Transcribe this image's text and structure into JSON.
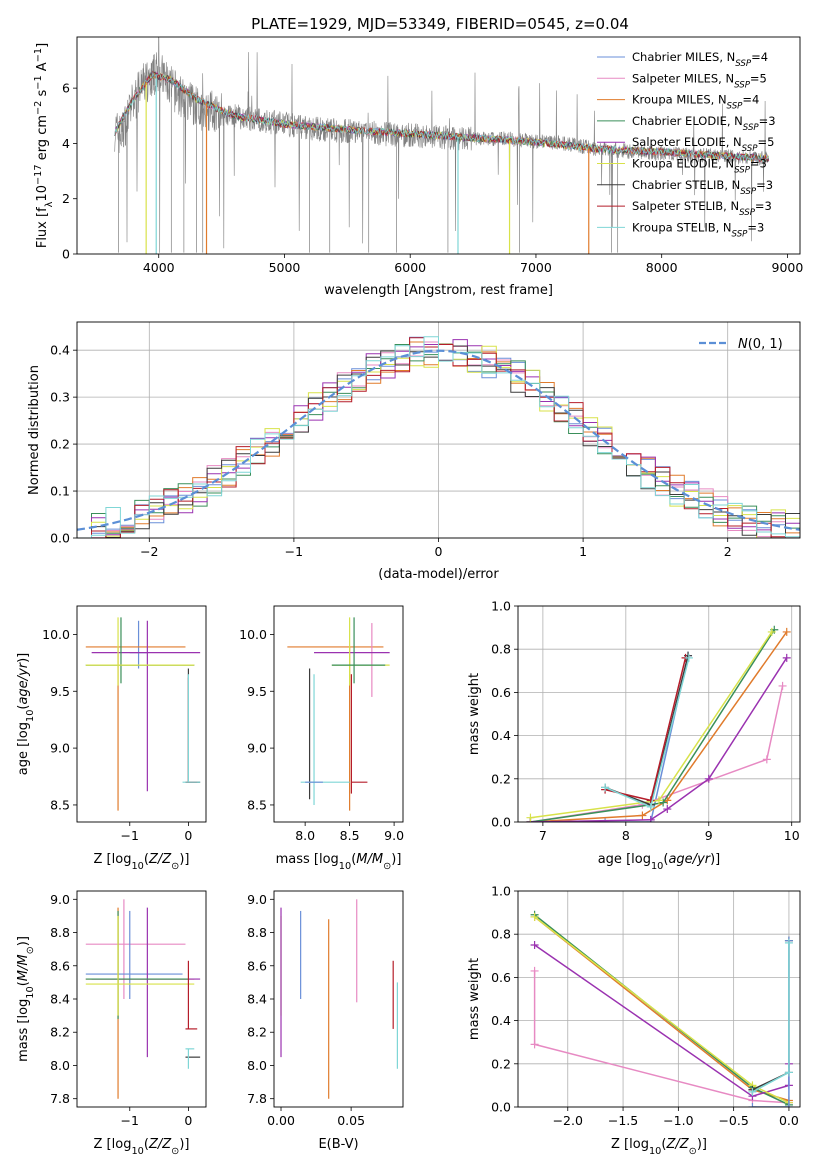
{
  "figure_title": "PLATE=1929, MJD=53349, FIBERID=0545, z=0.04",
  "colors": {
    "Chabrier MILES": "#6a8fd8",
    "Salpeter MILES": "#e78ac3",
    "Kroupa MILES": "#e07b2c",
    "Chabrier ELODIE": "#3a8f5a",
    "Salpeter ELODIE": "#9a32b0",
    "Kroupa ELODIE": "#d8e24a",
    "Chabrier STELIB": "#3c3c3c",
    "Salpeter STELIB": "#b51d2a",
    "Kroupa STELIB": "#7fd6d6"
  },
  "chart_data": [
    {
      "id": "spectrum",
      "type": "line",
      "xlabel": "wavelength [Angstrom, rest frame]",
      "ylabel": "Flux [f_λ 10^-17 erg cm^-2 s^-1 A^-1]",
      "xlim": [
        3350,
        9100
      ],
      "ylim": [
        0,
        7.85
      ],
      "xticks": [
        4000,
        5000,
        6000,
        7000,
        8000,
        9000
      ],
      "yticks": [
        0,
        2,
        4,
        6
      ],
      "grid": false,
      "legend_position": "top-right",
      "data_series": {
        "name": "data",
        "color": "#808080",
        "x": [
          3650,
          3700,
          3800,
          3900,
          4000,
          4100,
          4200,
          4300,
          4500,
          4700,
          5000,
          5300,
          5600,
          6000,
          6400,
          6800,
          7200,
          7500,
          7800,
          8100,
          8400,
          8700,
          8850
        ],
        "y": [
          4.5,
          4.3,
          5.5,
          6.3,
          6.6,
          6.0,
          5.6,
          5.3,
          5.1,
          4.9,
          4.7,
          4.5,
          4.4,
          4.3,
          4.2,
          4.15,
          4.0,
          3.8,
          3.7,
          3.6,
          3.55,
          3.5,
          3.45
        ]
      },
      "series": [
        {
          "name": "Chabrier MILES",
          "legend": "Chabrier MILES, N_SSP=4",
          "color": "#6a8fd8"
        },
        {
          "name": "Salpeter MILES",
          "legend": "Salpeter MILES, N_SSP=5",
          "color": "#e78ac3"
        },
        {
          "name": "Kroupa MILES",
          "legend": "Kroupa MILES, N_SSP=4",
          "color": "#e07b2c"
        },
        {
          "name": "Chabrier ELODIE",
          "legend": "Chabrier ELODIE, N_SSP=3",
          "color": "#3a8f5a"
        },
        {
          "name": "Salpeter ELODIE",
          "legend": "Salpeter ELODIE, N_SSP=5",
          "color": "#9a32b0"
        },
        {
          "name": "Kroupa ELODIE",
          "legend": "Kroupa ELODIE, N_SSP=3",
          "color": "#d8e24a"
        },
        {
          "name": "Chabrier STELIB",
          "legend": "Chabrier STELIB, N_SSP=3",
          "color": "#3c3c3c"
        },
        {
          "name": "Salpeter STELIB",
          "legend": "Salpeter STELIB, N_SSP=3",
          "color": "#b51d2a"
        },
        {
          "name": "Kroupa STELIB",
          "legend": "Kroupa STELIB, N_SSP=3",
          "color": "#7fd6d6"
        }
      ],
      "model_curve": {
        "x": [
          3650,
          3800,
          3950,
          4100,
          4300,
          4600,
          5000,
          5500,
          6000,
          6500,
          7000,
          7500,
          8000,
          8500,
          8850
        ],
        "y": [
          4.4,
          5.6,
          6.5,
          6.3,
          5.6,
          5.0,
          4.7,
          4.5,
          4.35,
          4.2,
          4.05,
          3.8,
          3.7,
          3.55,
          3.45
        ]
      }
    },
    {
      "id": "residuals",
      "type": "line",
      "xlabel": "(data-model)/error",
      "ylabel": "Normed distribution",
      "xlim": [
        -2.5,
        2.5
      ],
      "ylim": [
        0,
        0.46
      ],
      "xticks": [
        -2,
        -1,
        0,
        1,
        2
      ],
      "yticks": [
        0.0,
        0.1,
        0.2,
        0.3,
        0.4
      ],
      "grid": true,
      "legend_position": "top-right",
      "gaussian_label": "N(0,1)",
      "gaussian_color": "#5b8fd6",
      "bin_width": 0.1
    },
    {
      "id": "age_vs_Z",
      "type": "scatter",
      "xlabel": "Z [log10(Z/Z☉)]",
      "ylabel": "age [log10(age/yr)]",
      "xlim": [
        -1.9,
        0.3
      ],
      "ylim": [
        8.35,
        10.25
      ],
      "xticks": [
        -1,
        0
      ],
      "yticks": [
        8.5,
        9.0,
        9.5,
        10.0
      ],
      "grid": false,
      "points": [
        {
          "s": "Chabrier MILES",
          "x": -0.85,
          "y": 9.84,
          "xe": [
            -1.0,
            -0.7
          ],
          "ye": [
            9.7,
            10.12
          ]
        },
        {
          "s": "Kroupa MILES",
          "x": -1.2,
          "y": 9.89,
          "xe": [
            -1.75,
            -0.05
          ],
          "ye": [
            8.45,
            9.89
          ]
        },
        {
          "s": "Salpeter ELODIE",
          "x": -0.9,
          "y": 9.84,
          "xe": [
            -1.65,
            0.2
          ],
          "ye": [
            9.84,
            9.84
          ]
        },
        {
          "s": "Salpeter ELODIE",
          "x": -0.7,
          "y": 9.84,
          "xe": [
            -0.7,
            -0.7
          ],
          "ye": [
            8.62,
            10.12
          ]
        },
        {
          "s": "Chabrier ELODIE",
          "x": -1.15,
          "y": 9.73,
          "xe": [
            -1.75,
            0.1
          ],
          "ye": [
            9.57,
            10.15
          ]
        },
        {
          "s": "Kroupa ELODIE",
          "x": -1.2,
          "y": 9.73,
          "xe": [
            -1.75,
            0.1
          ],
          "ye": [
            9.55,
            10.15
          ]
        },
        {
          "s": "Chabrier STELIB",
          "x": 0.0,
          "y": 8.7,
          "xe": [
            -0.05,
            0.2
          ],
          "ye": [
            8.7,
            9.7
          ]
        },
        {
          "s": "Salpeter STELIB",
          "x": 0.0,
          "y": 8.7,
          "xe": [
            -0.05,
            0.15
          ],
          "ye": [
            8.7,
            9.62
          ]
        },
        {
          "s": "Kroupa STELIB",
          "x": 0.0,
          "y": 8.7,
          "xe": [
            -0.1,
            0.2
          ],
          "ye": [
            8.7,
            9.65
          ]
        }
      ]
    },
    {
      "id": "age_vs_mass",
      "type": "scatter",
      "xlabel": "mass [log10(M/M☉)]",
      "ylabel": "",
      "xlim": [
        7.65,
        9.1
      ],
      "ylim": [
        8.35,
        10.25
      ],
      "xticks": [
        8.0,
        8.5,
        9.0
      ],
      "yticks": [
        8.5,
        9.0,
        9.5,
        10.0
      ],
      "grid": false,
      "points": [
        {
          "s": "Kroupa MILES",
          "x": 8.5,
          "y": 9.89,
          "xe": [
            7.8,
            8.88
          ],
          "ye": [
            8.45,
            9.89
          ]
        },
        {
          "s": "Salpeter MILES",
          "x": 8.75,
          "y": 9.84,
          "xe": [
            8.75,
            8.75
          ],
          "ye": [
            9.45,
            10.1
          ]
        },
        {
          "s": "Salpeter ELODIE",
          "x": 8.5,
          "y": 9.84,
          "xe": [
            8.1,
            8.95
          ],
          "ye": [
            9.84,
            9.84
          ]
        },
        {
          "s": "Kroupa ELODIE",
          "x": 8.5,
          "y": 9.73,
          "xe": [
            8.3,
            8.95
          ],
          "ye": [
            9.55,
            10.15
          ]
        },
        {
          "s": "Chabrier ELODIE",
          "x": 8.55,
          "y": 9.73,
          "xe": [
            8.3,
            8.9
          ],
          "ye": [
            9.57,
            10.15
          ]
        },
        {
          "s": "Chabrier STELIB",
          "x": 8.05,
          "y": 8.7,
          "xe": [
            8.05,
            8.05
          ],
          "ye": [
            8.55,
            9.7
          ]
        },
        {
          "s": "Kroupa STELIB",
          "x": 8.1,
          "y": 8.7,
          "xe": [
            7.95,
            8.5
          ],
          "ye": [
            8.5,
            9.65
          ]
        },
        {
          "s": "Salpeter STELIB",
          "x": 8.52,
          "y": 8.7,
          "xe": [
            8.52,
            8.7
          ],
          "ye": [
            8.6,
            9.65
          ]
        },
        {
          "s": "Chabrier MILES",
          "x": 8.2,
          "y": 8.7,
          "xe": [
            8.0,
            8.2
          ],
          "ye": [
            8.7,
            8.7
          ]
        }
      ]
    },
    {
      "id": "weight_vs_age",
      "type": "line",
      "xlabel": "age [log10(age/yr)]",
      "ylabel": "mass weight",
      "xlim": [
        6.7,
        10.1
      ],
      "ylim": [
        0,
        1.0
      ],
      "xticks": [
        7,
        8,
        9,
        10
      ],
      "yticks": [
        0.0,
        0.2,
        0.4,
        0.6,
        0.8,
        1.0
      ],
      "grid": true,
      "series": [
        {
          "s": "Chabrier MILES",
          "x": [
            6.85,
            7.75,
            8.3,
            8.75
          ],
          "y": [
            0.0,
            0.0,
            0.0,
            0.77
          ]
        },
        {
          "s": "Salpeter MILES",
          "x": [
            6.85,
            8.2,
            9.7,
            9.89
          ],
          "y": [
            0.0,
            0.08,
            0.29,
            0.63
          ]
        },
        {
          "s": "Kroupa MILES",
          "x": [
            6.85,
            8.2,
            8.5,
            9.94
          ],
          "y": [
            0.0,
            0.03,
            0.1,
            0.88
          ]
        },
        {
          "s": "Chabrier ELODIE",
          "x": [
            6.85,
            8.3,
            8.45,
            9.79
          ],
          "y": [
            0.0,
            0.08,
            0.09,
            0.89
          ]
        },
        {
          "s": "Salpeter ELODIE",
          "x": [
            6.85,
            8.3,
            8.5,
            9.0,
            9.94
          ],
          "y": [
            0.0,
            0.01,
            0.06,
            0.2,
            0.76
          ]
        },
        {
          "s": "Kroupa ELODIE",
          "x": [
            6.85,
            8.4,
            9.76
          ],
          "y": [
            0.02,
            0.1,
            0.88
          ]
        },
        {
          "s": "Chabrier STELIB",
          "x": [
            7.75,
            8.3,
            8.75
          ],
          "y": [
            0.16,
            0.08,
            0.77
          ]
        },
        {
          "s": "Salpeter STELIB",
          "x": [
            7.75,
            8.3,
            8.72
          ],
          "y": [
            0.15,
            0.1,
            0.76
          ]
        },
        {
          "s": "Kroupa STELIB",
          "x": [
            7.75,
            8.3,
            8.76
          ],
          "y": [
            0.16,
            0.07,
            0.76
          ]
        }
      ]
    },
    {
      "id": "mass_vs_Z",
      "type": "scatter",
      "xlabel": "Z [log10(Z/Z☉)]",
      "ylabel": "mass [log10(M/M☉)]",
      "xlim": [
        -1.9,
        0.3
      ],
      "ylim": [
        7.75,
        9.05
      ],
      "xticks": [
        -1,
        0
      ],
      "yticks": [
        7.8,
        8.0,
        8.2,
        8.4,
        8.6,
        8.8,
        9.0
      ],
      "grid": false,
      "points": [
        {
          "s": "Salpeter MILES",
          "x": -1.1,
          "y": 8.73,
          "xe": [
            -1.75,
            -0.05
          ],
          "ye": [
            8.4,
            9.0
          ]
        },
        {
          "s": "Chabrier MILES",
          "x": -1.0,
          "y": 8.55,
          "xe": [
            -1.75,
            -0.1
          ],
          "ye": [
            8.4,
            8.93
          ]
        },
        {
          "s": "Kroupa MILES",
          "x": -1.2,
          "y": 8.52,
          "xe": [
            -1.75,
            0.1
          ],
          "ye": [
            7.8,
            8.95
          ]
        },
        {
          "s": "Salpeter ELODIE",
          "x": -0.7,
          "y": 8.52,
          "xe": [
            -1.65,
            0.2
          ],
          "ye": [
            8.05,
            8.95
          ]
        },
        {
          "s": "Chabrier ELODIE",
          "x": -1.2,
          "y": 8.52,
          "xe": [
            -1.75,
            0.0
          ],
          "ye": [
            8.28,
            8.93
          ]
        },
        {
          "s": "Kroupa ELODIE",
          "x": -1.2,
          "y": 8.49,
          "xe": [
            -1.75,
            0.1
          ],
          "ye": [
            8.3,
            8.9
          ]
        },
        {
          "s": "Salpeter STELIB",
          "x": 0.0,
          "y": 8.22,
          "xe": [
            -0.05,
            0.15
          ],
          "ye": [
            8.22,
            8.63
          ]
        },
        {
          "s": "Chabrier STELIB",
          "x": 0.0,
          "y": 8.05,
          "xe": [
            -0.05,
            0.2
          ],
          "ye": [
            8.05,
            8.05
          ]
        },
        {
          "s": "Kroupa STELIB",
          "x": 0.0,
          "y": 8.1,
          "xe": [
            -0.05,
            0.1
          ],
          "ye": [
            7.98,
            8.1
          ]
        }
      ]
    },
    {
      "id": "mass_vs_EBV",
      "type": "scatter",
      "xlabel": "E(B-V)",
      "ylabel": "",
      "xlim": [
        -0.005,
        0.087
      ],
      "ylim": [
        7.75,
        9.05
      ],
      "xticks": [
        0.0,
        0.05
      ],
      "yticks": [
        7.8,
        8.0,
        8.2,
        8.4,
        8.6,
        8.8,
        9.0
      ],
      "grid": false,
      "points": [
        {
          "s": "Kroupa ELODIE",
          "x": 0.0,
          "ye": [
            8.3,
            8.9
          ]
        },
        {
          "s": "Salpeter ELODIE",
          "x": 0.0,
          "ye": [
            8.05,
            8.95
          ]
        },
        {
          "s": "Chabrier MILES",
          "x": 0.014,
          "ye": [
            8.4,
            8.93
          ]
        },
        {
          "s": "Kroupa MILES",
          "x": 0.034,
          "ye": [
            7.8,
            8.88
          ]
        },
        {
          "s": "Salpeter MILES",
          "x": 0.054,
          "ye": [
            8.38,
            9.0
          ]
        },
        {
          "s": "Salpeter STELIB",
          "x": 0.08,
          "ye": [
            8.22,
            8.63
          ]
        },
        {
          "s": "Kroupa STELIB",
          "x": 0.083,
          "ye": [
            7.98,
            8.5
          ]
        }
      ]
    },
    {
      "id": "weight_vs_Z",
      "type": "line",
      "xlabel": "Z [log10(Z/Z☉)]",
      "ylabel": "mass weight",
      "xlim": [
        -2.45,
        0.1
      ],
      "ylim": [
        0,
        1.0
      ],
      "xticks": [
        -2.0,
        -1.5,
        -1.0,
        -0.5,
        0.0
      ],
      "yticks": [
        0.0,
        0.2,
        0.4,
        0.6,
        0.8,
        1.0
      ],
      "grid": true,
      "series": [
        {
          "s": "Salpeter MILES",
          "x": [
            -2.3,
            -2.3,
            -0.33,
            0.0
          ],
          "y": [
            0.63,
            0.29,
            0.03,
            0.02
          ]
        },
        {
          "s": "Kroupa MILES",
          "x": [
            -2.3,
            -0.33,
            0.0
          ],
          "y": [
            0.88,
            0.08,
            0.03
          ]
        },
        {
          "s": "Chabrier ELODIE",
          "x": [
            -2.3,
            -0.33,
            0.0
          ],
          "y": [
            0.89,
            0.09,
            0.01
          ]
        },
        {
          "s": "Salpeter ELODIE",
          "x": [
            -2.3,
            -0.33,
            0.0,
            0.0
          ],
          "y": [
            0.75,
            0.05,
            0.1,
            0.2
          ]
        },
        {
          "s": "Kroupa ELODIE",
          "x": [
            -2.3,
            -0.33,
            0.0
          ],
          "y": [
            0.88,
            0.1,
            0.02
          ]
        },
        {
          "s": "Chabrier STELIB",
          "x": [
            -0.33,
            0.0,
            0.0
          ],
          "y": [
            0.08,
            0.16,
            0.77
          ]
        },
        {
          "s": "Chabrier MILES",
          "x": [
            -0.33,
            0.0,
            0.0
          ],
          "y": [
            0.0,
            0.0,
            0.77
          ]
        },
        {
          "s": "Kroupa STELIB",
          "x": [
            -0.33,
            0.0,
            0.0
          ],
          "y": [
            0.07,
            0.16,
            0.76
          ]
        }
      ]
    }
  ]
}
